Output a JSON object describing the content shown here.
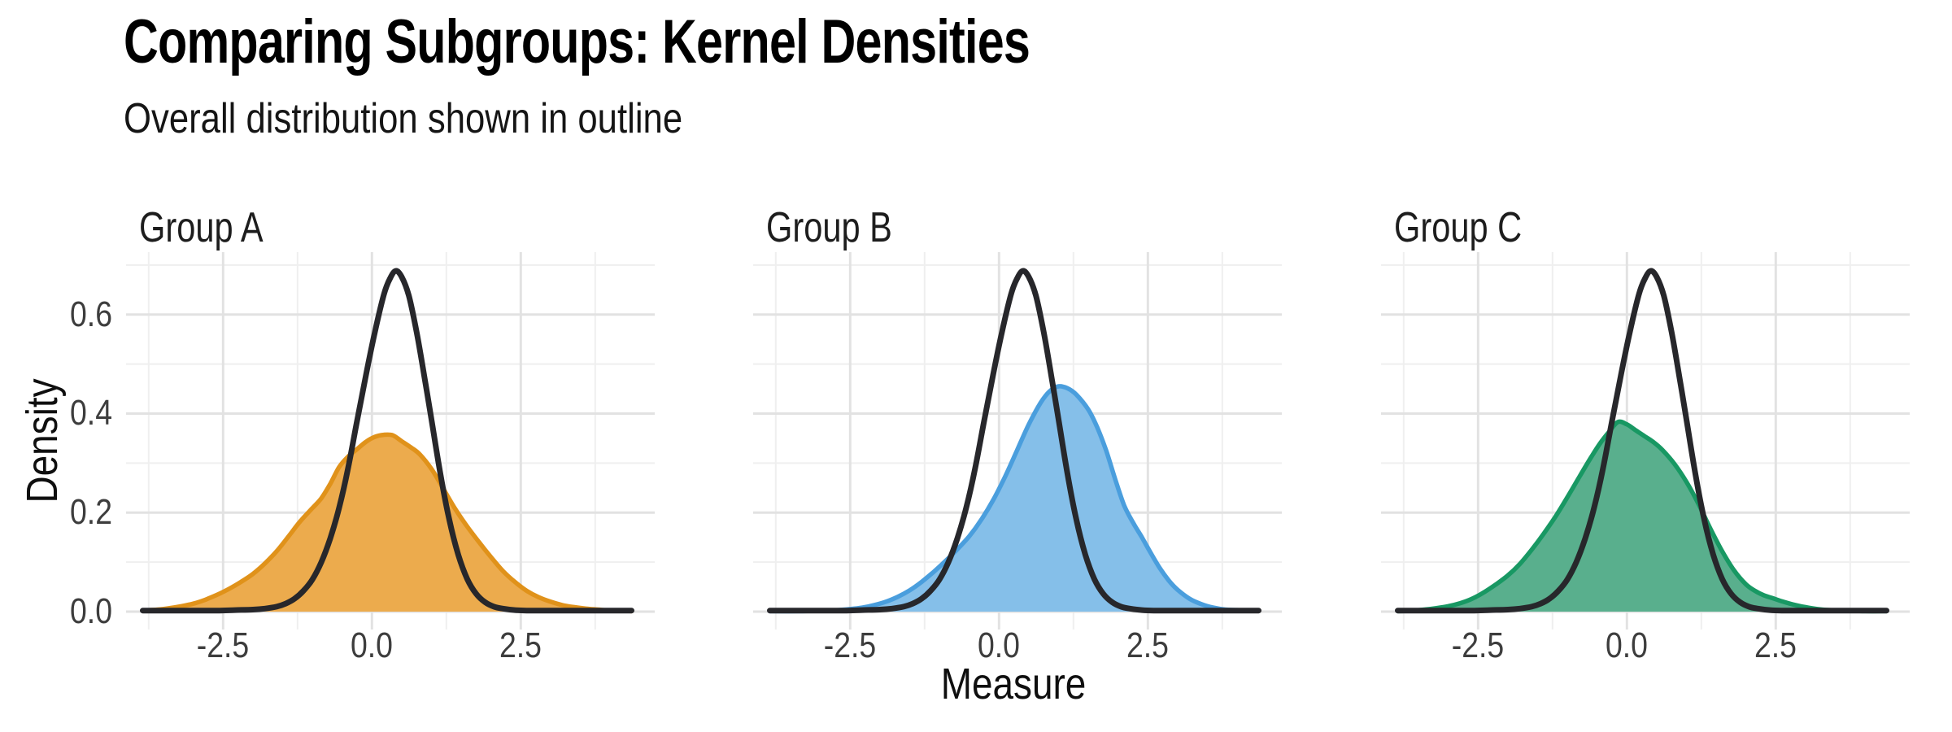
{
  "header": {
    "title": "Comparing Subgroups: Kernel Densities",
    "subtitle": "Overall distribution shown in outline"
  },
  "axes": {
    "x_title": "Measure",
    "y_title": "Density"
  },
  "colors": {
    "background": "#ffffff",
    "outline_curve": "#27272b",
    "grid_major": "#e2e2e2",
    "grid_minor": "#efefef",
    "title_text": "#000000",
    "tick_text": "#3d3d3d",
    "facet_text": "#1d1d1d"
  },
  "chart_data": {
    "type": "area",
    "title": "Comparing Subgroups: Kernel Densities",
    "subtitle": "Overall distribution shown in outline",
    "xlabel": "Measure",
    "ylabel": "Density",
    "x_ticks": [
      -2.5,
      0.0,
      2.5
    ],
    "x_minor": [
      -3.75,
      -1.25,
      1.25,
      3.75
    ],
    "y_ticks": [
      0.0,
      0.2,
      0.4,
      0.6
    ],
    "y_minor": [
      0.1,
      0.3,
      0.5,
      0.7
    ],
    "xlim": [
      -4.13,
      4.75
    ],
    "ylim": [
      -0.0362,
      0.726
    ],
    "grid": "major+minor",
    "legend_position": "none",
    "facets": [
      {
        "label": "Group A",
        "fill": "#ecab4d",
        "stroke": "#e0921a",
        "points": [
          [
            -3.85,
            0.002
          ],
          [
            -3.6,
            0.004
          ],
          [
            -3.4,
            0.007
          ],
          [
            -3.2,
            0.011
          ],
          [
            -3.0,
            0.016
          ],
          [
            -2.8,
            0.024
          ],
          [
            -2.6,
            0.034
          ],
          [
            -2.4,
            0.046
          ],
          [
            -2.2,
            0.06
          ],
          [
            -2.0,
            0.076
          ],
          [
            -1.8,
            0.097
          ],
          [
            -1.6,
            0.122
          ],
          [
            -1.4,
            0.152
          ],
          [
            -1.2,
            0.183
          ],
          [
            -1.0,
            0.209
          ],
          [
            -0.85,
            0.229
          ],
          [
            -0.7,
            0.258
          ],
          [
            -0.55,
            0.292
          ],
          [
            -0.4,
            0.313
          ],
          [
            -0.25,
            0.328
          ],
          [
            -0.1,
            0.343
          ],
          [
            0.05,
            0.353
          ],
          [
            0.2,
            0.357
          ],
          [
            0.35,
            0.356
          ],
          [
            0.5,
            0.344
          ],
          [
            0.65,
            0.332
          ],
          [
            0.8,
            0.318
          ],
          [
            1.0,
            0.288
          ],
          [
            1.2,
            0.248
          ],
          [
            1.4,
            0.207
          ],
          [
            1.6,
            0.172
          ],
          [
            1.8,
            0.14
          ],
          [
            2.0,
            0.11
          ],
          [
            2.2,
            0.082
          ],
          [
            2.4,
            0.06
          ],
          [
            2.6,
            0.042
          ],
          [
            2.8,
            0.029
          ],
          [
            3.0,
            0.02
          ],
          [
            3.2,
            0.013
          ],
          [
            3.4,
            0.009
          ],
          [
            3.6,
            0.006
          ],
          [
            3.8,
            0.004
          ],
          [
            4.0,
            0.002
          ],
          [
            4.2,
            0.002
          ],
          [
            4.36,
            0.001
          ]
        ]
      },
      {
        "label": "Group B",
        "fill": "#85bfe9",
        "stroke": "#4a9edd",
        "points": [
          [
            -3.85,
            0.001
          ],
          [
            -3.3,
            0.001
          ],
          [
            -3.0,
            0.002
          ],
          [
            -2.7,
            0.003
          ],
          [
            -2.5,
            0.005
          ],
          [
            -2.3,
            0.008
          ],
          [
            -2.1,
            0.013
          ],
          [
            -1.9,
            0.02
          ],
          [
            -1.7,
            0.03
          ],
          [
            -1.5,
            0.043
          ],
          [
            -1.3,
            0.06
          ],
          [
            -1.1,
            0.08
          ],
          [
            -0.9,
            0.102
          ],
          [
            -0.7,
            0.126
          ],
          [
            -0.5,
            0.152
          ],
          [
            -0.3,
            0.185
          ],
          [
            -0.1,
            0.225
          ],
          [
            0.1,
            0.272
          ],
          [
            0.3,
            0.325
          ],
          [
            0.5,
            0.378
          ],
          [
            0.7,
            0.422
          ],
          [
            0.85,
            0.445
          ],
          [
            1.0,
            0.455
          ],
          [
            1.15,
            0.451
          ],
          [
            1.3,
            0.438
          ],
          [
            1.5,
            0.408
          ],
          [
            1.65,
            0.372
          ],
          [
            1.8,
            0.325
          ],
          [
            1.95,
            0.268
          ],
          [
            2.1,
            0.215
          ],
          [
            2.25,
            0.18
          ],
          [
            2.4,
            0.15
          ],
          [
            2.55,
            0.118
          ],
          [
            2.7,
            0.088
          ],
          [
            2.85,
            0.063
          ],
          [
            3.0,
            0.044
          ],
          [
            3.2,
            0.026
          ],
          [
            3.4,
            0.015
          ],
          [
            3.6,
            0.008
          ],
          [
            3.8,
            0.004
          ],
          [
            4.0,
            0.003
          ],
          [
            4.2,
            0.002
          ],
          [
            4.36,
            0.002
          ]
        ]
      },
      {
        "label": "Group C",
        "fill": "#59af8d",
        "stroke": "#189863",
        "points": [
          [
            -3.85,
            0.001
          ],
          [
            -3.6,
            0.002
          ],
          [
            -3.4,
            0.004
          ],
          [
            -3.2,
            0.007
          ],
          [
            -3.0,
            0.011
          ],
          [
            -2.8,
            0.017
          ],
          [
            -2.6,
            0.026
          ],
          [
            -2.4,
            0.039
          ],
          [
            -2.2,
            0.055
          ],
          [
            -2.0,
            0.073
          ],
          [
            -1.8,
            0.096
          ],
          [
            -1.6,
            0.125
          ],
          [
            -1.4,
            0.157
          ],
          [
            -1.2,
            0.192
          ],
          [
            -1.0,
            0.231
          ],
          [
            -0.8,
            0.272
          ],
          [
            -0.6,
            0.312
          ],
          [
            -0.45,
            0.34
          ],
          [
            -0.3,
            0.363
          ],
          [
            -0.15,
            0.383
          ],
          [
            0.0,
            0.378
          ],
          [
            0.15,
            0.366
          ],
          [
            0.3,
            0.354
          ],
          [
            0.45,
            0.342
          ],
          [
            0.6,
            0.326
          ],
          [
            0.8,
            0.298
          ],
          [
            1.0,
            0.262
          ],
          [
            1.2,
            0.218
          ],
          [
            1.4,
            0.168
          ],
          [
            1.6,
            0.122
          ],
          [
            1.8,
            0.083
          ],
          [
            2.0,
            0.055
          ],
          [
            2.15,
            0.042
          ],
          [
            2.3,
            0.033
          ],
          [
            2.45,
            0.027
          ],
          [
            2.6,
            0.021
          ],
          [
            2.8,
            0.014
          ],
          [
            3.0,
            0.009
          ],
          [
            3.2,
            0.005
          ],
          [
            3.4,
            0.003
          ],
          [
            3.7,
            0.002
          ],
          [
            4.0,
            0.001
          ],
          [
            4.36,
            0.001
          ]
        ]
      }
    ],
    "overall": {
      "label": "Overall",
      "stroke": "#27272b",
      "points": [
        [
          -3.85,
          0.002
        ],
        [
          -3.5,
          0.002
        ],
        [
          -3.0,
          0.002
        ],
        [
          -2.6,
          0.002
        ],
        [
          -2.3,
          0.003
        ],
        [
          -2.0,
          0.004
        ],
        [
          -1.8,
          0.006
        ],
        [
          -1.6,
          0.01
        ],
        [
          -1.45,
          0.016
        ],
        [
          -1.3,
          0.026
        ],
        [
          -1.15,
          0.042
        ],
        [
          -1.0,
          0.065
        ],
        [
          -0.85,
          0.1
        ],
        [
          -0.7,
          0.148
        ],
        [
          -0.55,
          0.21
        ],
        [
          -0.4,
          0.29
        ],
        [
          -0.25,
          0.385
        ],
        [
          -0.1,
          0.478
        ],
        [
          0.05,
          0.565
        ],
        [
          0.2,
          0.64
        ],
        [
          0.3,
          0.672
        ],
        [
          0.4,
          0.688
        ],
        [
          0.5,
          0.676
        ],
        [
          0.62,
          0.638
        ],
        [
          0.75,
          0.565
        ],
        [
          0.88,
          0.475
        ],
        [
          1.0,
          0.388
        ],
        [
          1.15,
          0.278
        ],
        [
          1.3,
          0.185
        ],
        [
          1.45,
          0.115
        ],
        [
          1.6,
          0.066
        ],
        [
          1.75,
          0.036
        ],
        [
          1.9,
          0.019
        ],
        [
          2.05,
          0.01
        ],
        [
          2.2,
          0.006
        ],
        [
          2.4,
          0.003
        ],
        [
          2.6,
          0.002
        ],
        [
          3.0,
          0.002
        ],
        [
          3.5,
          0.002
        ],
        [
          4.0,
          0.002
        ],
        [
          4.36,
          0.002
        ]
      ]
    }
  }
}
